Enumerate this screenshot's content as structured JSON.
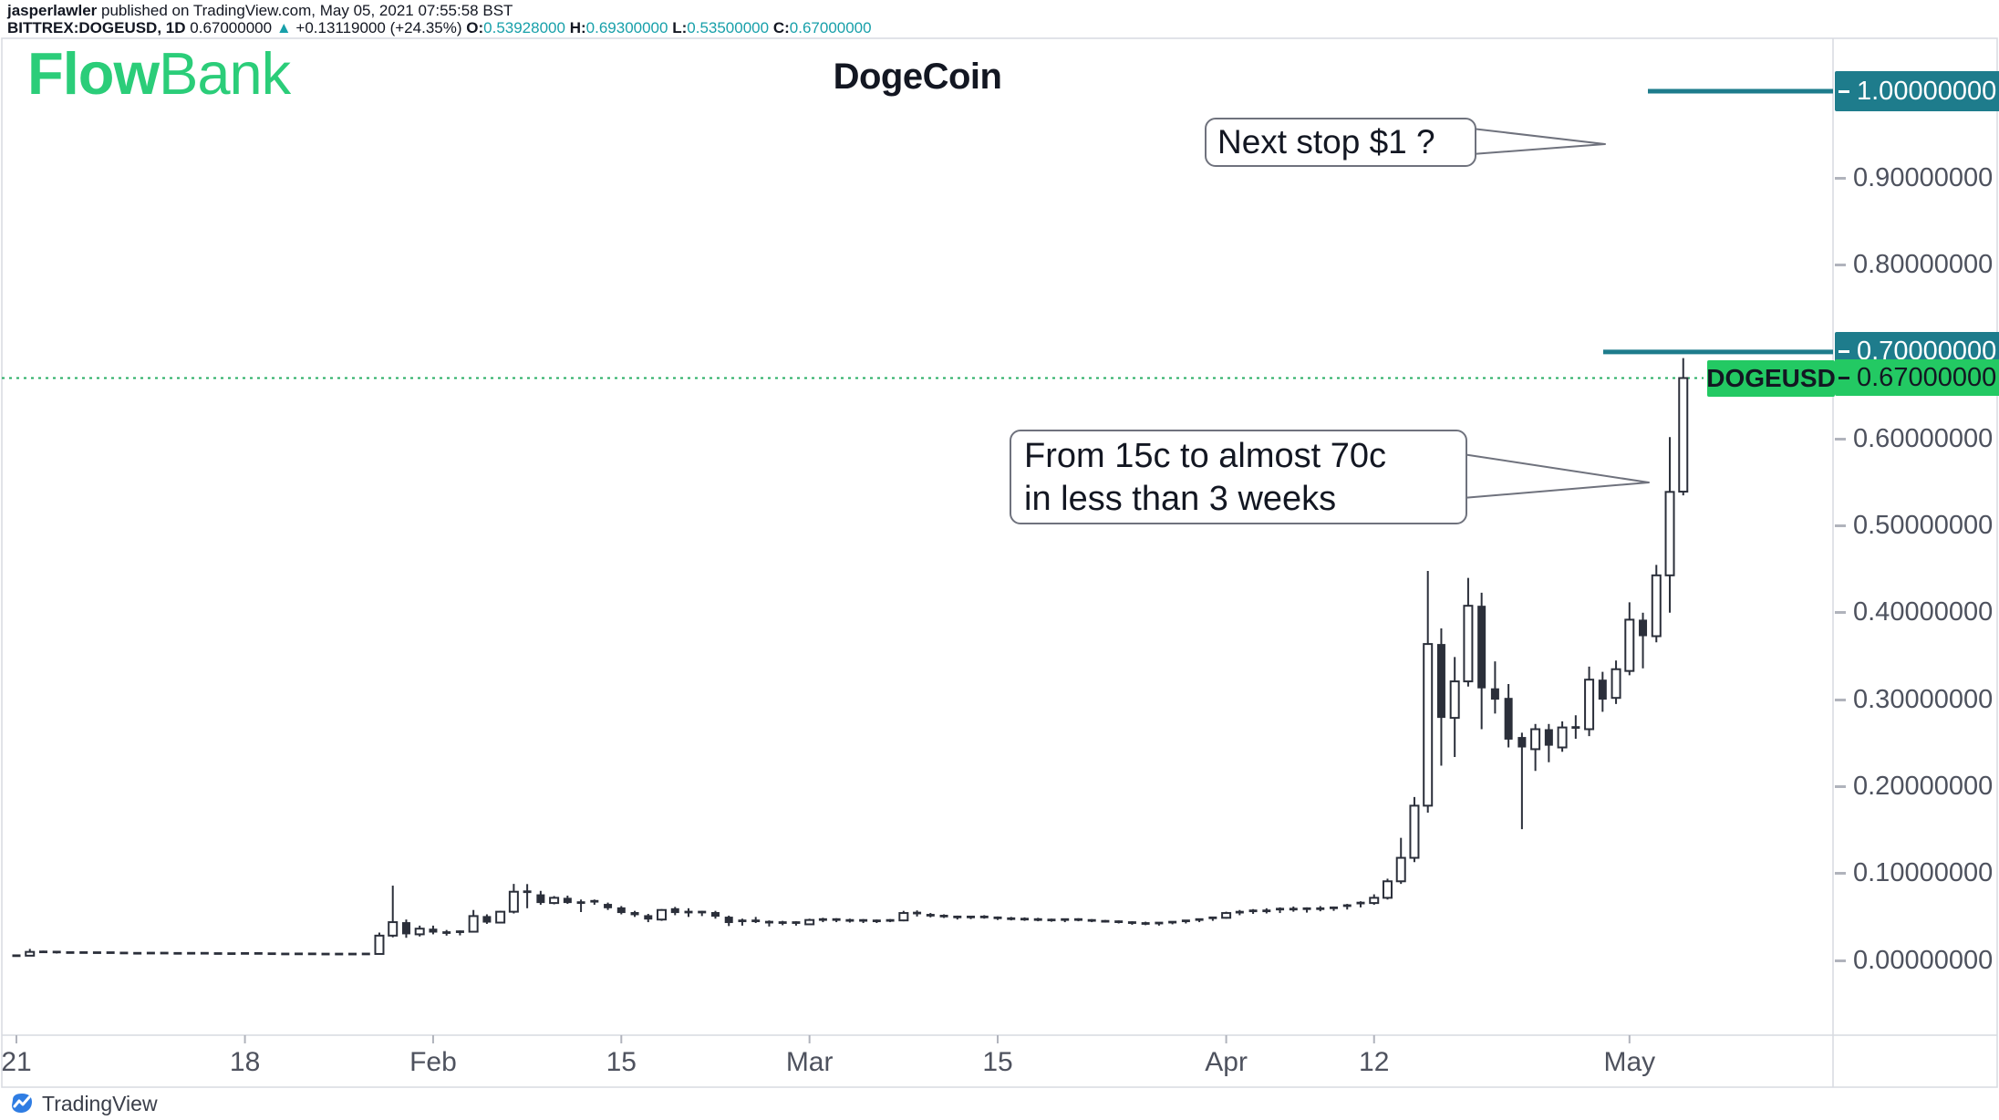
{
  "header": {
    "line1_bold": "jasperlawler",
    "line1_rest": " published on TradingView.com, May 05, 2021 07:55:58 BST",
    "symbol_tf": "BITTREX:DOGEUSD, 1D",
    "last": "0.67000000",
    "arrow": "▲",
    "change": "+0.13119000 (+24.35%)",
    "o_label": "O:",
    "o_value": "0.53928000",
    "h_label": "H:",
    "h_value": "0.69300000",
    "l_label": "L:",
    "l_value": "0.53500000",
    "c_label": "C:",
    "c_value": "0.67000000"
  },
  "logo": {
    "flow": "Flow",
    "bank": "Bank"
  },
  "title": "DogeCoin",
  "annotations": {
    "next_stop": "Next stop $1 ?",
    "run_line1": "From 15c to almost 70c",
    "run_line2": "in less than 3 weeks"
  },
  "symbol_badge": "DOGEUSD",
  "watermark": "TradingView",
  "colors": {
    "candle": "#2b2f3a",
    "teal_level": "#1e7c8c",
    "green_badge": "#23c963",
    "teal_value_text": "#18a0aa",
    "axis_text": "#4e525e",
    "frame_border": "#d7dae0",
    "dotted_price_line": "#26ad63",
    "flowbank_green": "#2bcd79",
    "tradingview_blue": "#2f7de3"
  },
  "price_axis": {
    "ticks": [
      {
        "label": "1.00000000",
        "price": 1.0,
        "style": "teal"
      },
      {
        "label": "0.90000000",
        "price": 0.9,
        "style": "plain"
      },
      {
        "label": "0.80000000",
        "price": 0.8,
        "style": "plain"
      },
      {
        "label": "0.70000000",
        "price": 0.7,
        "style": "teal"
      },
      {
        "label": "0.67000000",
        "price": 0.67,
        "style": "price"
      },
      {
        "label": "0.60000000",
        "price": 0.6,
        "style": "plain"
      },
      {
        "label": "0.50000000",
        "price": 0.5,
        "style": "plain"
      },
      {
        "label": "0.40000000",
        "price": 0.4,
        "style": "plain"
      },
      {
        "label": "0.30000000",
        "price": 0.3,
        "style": "plain"
      },
      {
        "label": "0.20000000",
        "price": 0.2,
        "style": "plain"
      },
      {
        "label": "0.10000000",
        "price": 0.1,
        "style": "plain"
      },
      {
        "label": "0.00000000",
        "price": 0.0,
        "style": "plain"
      }
    ]
  },
  "time_axis": {
    "ticks": [
      {
        "label": "21",
        "day": 0
      },
      {
        "label": "18",
        "day": 17
      },
      {
        "label": "Feb",
        "day": 31
      },
      {
        "label": "15",
        "day": 45
      },
      {
        "label": "Mar",
        "day": 59
      },
      {
        "label": "15",
        "day": 73
      },
      {
        "label": "Apr",
        "day": 90
      },
      {
        "label": "12",
        "day": 101
      },
      {
        "label": "May",
        "day": 120
      }
    ]
  },
  "chart_data": {
    "type": "candlestick",
    "symbol": "BITTREX:DOGEUSD",
    "timeframe": "1D",
    "title": "DogeCoin",
    "start_date": "2021-01-01",
    "interval_days": 1,
    "ylim": [
      0.0,
      1.05
    ],
    "last_price": 0.67,
    "level_lines": [
      1.0,
      0.7
    ],
    "grid": false,
    "ohlc_note": "each entry is [open, high, low, close] in USD, daily from 2021-01-01 to 2021-05-05",
    "ohlc": [
      [
        0.0047,
        0.0055,
        0.0045,
        0.0054
      ],
      [
        0.0054,
        0.0132,
        0.0052,
        0.0098
      ],
      [
        0.0098,
        0.0112,
        0.0086,
        0.0096
      ],
      [
        0.0096,
        0.0104,
        0.0079,
        0.0088
      ],
      [
        0.0088,
        0.0095,
        0.0082,
        0.009
      ],
      [
        0.009,
        0.0098,
        0.0084,
        0.0086
      ],
      [
        0.0086,
        0.0092,
        0.008,
        0.0089
      ],
      [
        0.0089,
        0.0094,
        0.0083,
        0.0085
      ],
      [
        0.0085,
        0.009,
        0.0078,
        0.0082
      ],
      [
        0.0082,
        0.0088,
        0.0076,
        0.008
      ],
      [
        0.008,
        0.0086,
        0.0075,
        0.0084
      ],
      [
        0.0084,
        0.009,
        0.0078,
        0.0081
      ],
      [
        0.0081,
        0.0085,
        0.0074,
        0.0078
      ],
      [
        0.0078,
        0.0084,
        0.0072,
        0.0082
      ],
      [
        0.0082,
        0.0088,
        0.0076,
        0.0079
      ],
      [
        0.0079,
        0.0083,
        0.0071,
        0.0075
      ],
      [
        0.0075,
        0.0081,
        0.0069,
        0.0078
      ],
      [
        0.0078,
        0.0085,
        0.0073,
        0.008
      ],
      [
        0.008,
        0.0086,
        0.0074,
        0.0077
      ],
      [
        0.0077,
        0.0082,
        0.007,
        0.0074
      ],
      [
        0.0074,
        0.0079,
        0.0067,
        0.0072
      ],
      [
        0.0072,
        0.0078,
        0.0066,
        0.0075
      ],
      [
        0.0075,
        0.008,
        0.0069,
        0.0073
      ],
      [
        0.0073,
        0.0077,
        0.0066,
        0.007
      ],
      [
        0.007,
        0.0076,
        0.0064,
        0.0073
      ],
      [
        0.0073,
        0.0079,
        0.0068,
        0.0071
      ],
      [
        0.0071,
        0.0077,
        0.0065,
        0.0074
      ],
      [
        0.0074,
        0.032,
        0.0072,
        0.0285
      ],
      [
        0.0285,
        0.086,
        0.0265,
        0.044
      ],
      [
        0.044,
        0.047,
        0.026,
        0.03
      ],
      [
        0.03,
        0.04,
        0.0275,
        0.0365
      ],
      [
        0.0365,
        0.04,
        0.03,
        0.032
      ],
      [
        0.032,
        0.035,
        0.0285,
        0.03
      ],
      [
        0.03,
        0.0345,
        0.0288,
        0.033
      ],
      [
        0.033,
        0.058,
        0.032,
        0.051
      ],
      [
        0.051,
        0.053,
        0.042,
        0.0435
      ],
      [
        0.0435,
        0.057,
        0.0425,
        0.056
      ],
      [
        0.056,
        0.088,
        0.054,
        0.079
      ],
      [
        0.079,
        0.0878,
        0.06,
        0.076
      ],
      [
        0.076,
        0.08,
        0.064,
        0.066
      ],
      [
        0.066,
        0.074,
        0.0645,
        0.072
      ],
      [
        0.072,
        0.0745,
        0.065,
        0.066
      ],
      [
        0.066,
        0.07,
        0.0556,
        0.0665
      ],
      [
        0.068,
        0.07,
        0.064,
        0.065
      ],
      [
        0.065,
        0.0665,
        0.058,
        0.06
      ],
      [
        0.061,
        0.0625,
        0.053,
        0.0545
      ],
      [
        0.0556,
        0.057,
        0.05,
        0.052
      ],
      [
        0.052,
        0.0535,
        0.044,
        0.047
      ],
      [
        0.047,
        0.059,
        0.0455,
        0.058
      ],
      [
        0.06,
        0.0615,
        0.052,
        0.0545
      ],
      [
        0.0556,
        0.06,
        0.05,
        0.0556
      ],
      [
        0.053,
        0.057,
        0.051,
        0.0556
      ],
      [
        0.0556,
        0.057,
        0.048,
        0.0503
      ],
      [
        0.0503,
        0.0515,
        0.0395,
        0.043
      ],
      [
        0.043,
        0.048,
        0.04,
        0.0455
      ],
      [
        0.0455,
        0.05,
        0.043,
        0.044
      ],
      [
        0.044,
        0.046,
        0.039,
        0.042
      ],
      [
        0.042,
        0.0455,
        0.0405,
        0.0435
      ],
      [
        0.0435,
        0.045,
        0.04,
        0.0415
      ],
      [
        0.0415,
        0.048,
        0.041,
        0.0465
      ],
      [
        0.0465,
        0.049,
        0.044,
        0.047
      ],
      [
        0.047,
        0.0485,
        0.044,
        0.0455
      ],
      [
        0.0455,
        0.048,
        0.0435,
        0.046
      ],
      [
        0.046,
        0.0475,
        0.043,
        0.0445
      ],
      [
        0.0445,
        0.047,
        0.043,
        0.0455
      ],
      [
        0.0455,
        0.0475,
        0.044,
        0.046
      ],
      [
        0.046,
        0.057,
        0.045,
        0.0545
      ],
      [
        0.0545,
        0.0575,
        0.0505,
        0.052
      ],
      [
        0.052,
        0.0545,
        0.0495,
        0.051
      ],
      [
        0.051,
        0.053,
        0.0488,
        0.05
      ],
      [
        0.05,
        0.0515,
        0.047,
        0.0485
      ],
      [
        0.0485,
        0.051,
        0.0475,
        0.05
      ],
      [
        0.05,
        0.052,
        0.048,
        0.049
      ],
      [
        0.049,
        0.0505,
        0.0465,
        0.048
      ],
      [
        0.048,
        0.05,
        0.046,
        0.0475
      ],
      [
        0.0475,
        0.0495,
        0.0455,
        0.047
      ],
      [
        0.047,
        0.049,
        0.045,
        0.0465
      ],
      [
        0.0465,
        0.048,
        0.0445,
        0.046
      ],
      [
        0.046,
        0.048,
        0.044,
        0.047
      ],
      [
        0.047,
        0.0485,
        0.045,
        0.046
      ],
      [
        0.046,
        0.0475,
        0.044,
        0.045
      ],
      [
        0.045,
        0.0465,
        0.0435,
        0.0445
      ],
      [
        0.0445,
        0.046,
        0.0425,
        0.0435
      ],
      [
        0.0435,
        0.045,
        0.041,
        0.0425
      ],
      [
        0.0425,
        0.0445,
        0.0405,
        0.0415
      ],
      [
        0.0415,
        0.044,
        0.04,
        0.043
      ],
      [
        0.043,
        0.045,
        0.0415,
        0.044
      ],
      [
        0.044,
        0.0465,
        0.0425,
        0.0455
      ],
      [
        0.0455,
        0.048,
        0.044,
        0.047
      ],
      [
        0.047,
        0.05,
        0.0455,
        0.049
      ],
      [
        0.049,
        0.056,
        0.048,
        0.0545
      ],
      [
        0.0545,
        0.058,
        0.052,
        0.0555
      ],
      [
        0.0555,
        0.059,
        0.0535,
        0.057
      ],
      [
        0.057,
        0.06,
        0.054,
        0.056
      ],
      [
        0.056,
        0.061,
        0.0545,
        0.059
      ],
      [
        0.059,
        0.062,
        0.056,
        0.058
      ],
      [
        0.058,
        0.061,
        0.055,
        0.0595
      ],
      [
        0.0595,
        0.0625,
        0.0565,
        0.0585
      ],
      [
        0.0585,
        0.062,
        0.057,
        0.0605
      ],
      [
        0.0605,
        0.065,
        0.0585,
        0.063
      ],
      [
        0.063,
        0.068,
        0.061,
        0.066
      ],
      [
        0.066,
        0.076,
        0.064,
        0.072
      ],
      [
        0.072,
        0.094,
        0.07,
        0.091
      ],
      [
        0.091,
        0.141,
        0.088,
        0.118
      ],
      [
        0.118,
        0.188,
        0.113,
        0.178
      ],
      [
        0.178,
        0.448,
        0.17,
        0.364
      ],
      [
        0.364,
        0.382,
        0.224,
        0.279
      ],
      [
        0.279,
        0.349,
        0.234,
        0.321
      ],
      [
        0.321,
        0.44,
        0.315,
        0.408
      ],
      [
        0.408,
        0.423,
        0.266,
        0.313
      ],
      [
        0.313,
        0.344,
        0.284,
        0.3
      ],
      [
        0.302,
        0.318,
        0.245,
        0.254
      ],
      [
        0.257,
        0.262,
        0.151,
        0.245
      ],
      [
        0.243,
        0.272,
        0.218,
        0.266
      ],
      [
        0.266,
        0.272,
        0.228,
        0.247
      ],
      [
        0.245,
        0.275,
        0.24,
        0.268
      ],
      [
        0.268,
        0.282,
        0.255,
        0.268
      ],
      [
        0.266,
        0.338,
        0.258,
        0.323
      ],
      [
        0.323,
        0.332,
        0.286,
        0.3
      ],
      [
        0.302,
        0.345,
        0.295,
        0.335
      ],
      [
        0.333,
        0.412,
        0.328,
        0.392
      ],
      [
        0.392,
        0.4,
        0.336,
        0.373
      ],
      [
        0.373,
        0.455,
        0.366,
        0.443
      ],
      [
        0.443,
        0.602,
        0.4,
        0.539
      ],
      [
        0.5393,
        0.693,
        0.535,
        0.67
      ]
    ]
  }
}
